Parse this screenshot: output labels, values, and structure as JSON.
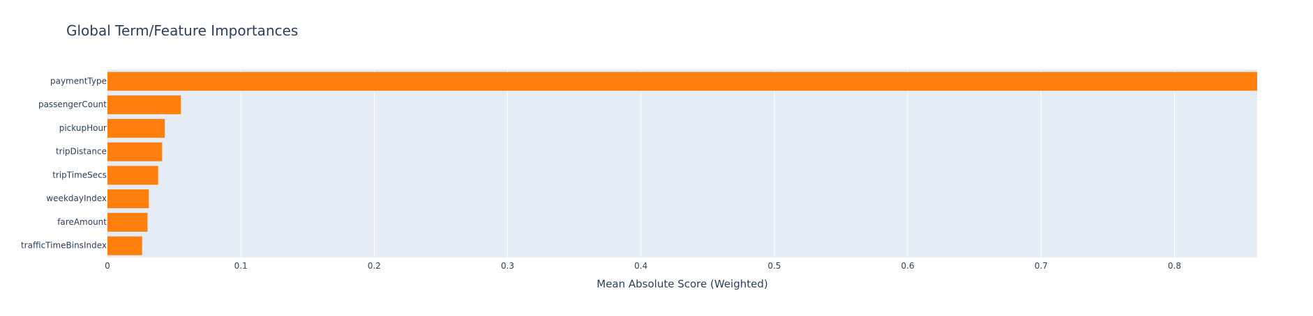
{
  "chart_data": {
    "type": "bar",
    "orientation": "horizontal",
    "title": "Global Term/Feature Importances",
    "xlabel": "Mean Absolute Score (Weighted)",
    "ylabel": "",
    "xlim": [
      0,
      0.862
    ],
    "x_ticks": [
      0,
      0.1,
      0.2,
      0.3,
      0.4,
      0.5,
      0.6,
      0.7,
      0.8
    ],
    "categories": [
      "paymentType",
      "passengerCount",
      "pickupHour",
      "tripDistance",
      "tripTimeSecs",
      "weekdayIndex",
      "fareAmount",
      "trafficTimeBinsIndex"
    ],
    "values": [
      0.862,
      0.055,
      0.043,
      0.041,
      0.038,
      0.031,
      0.03,
      0.026
    ],
    "grid": true,
    "legend": "none",
    "colors": {
      "bar": "#ff7f0e",
      "plot_background": "#e5ecf6",
      "grid": "#ffffff",
      "text": "#2a3f5f"
    }
  }
}
